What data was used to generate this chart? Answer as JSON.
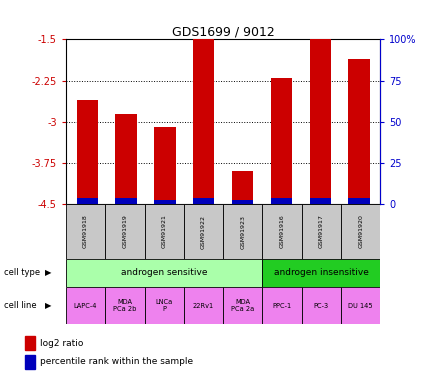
{
  "title": "GDS1699 / 9012",
  "samples": [
    "GSM91918",
    "GSM91919",
    "GSM91921",
    "GSM91922",
    "GSM91923",
    "GSM91916",
    "GSM91917",
    "GSM91920"
  ],
  "log2_ratio": [
    -2.6,
    -2.85,
    -3.1,
    -1.5,
    -3.9,
    -2.2,
    -1.5,
    -1.85
  ],
  "percentile_rank_height": [
    0.12,
    0.12,
    0.08,
    0.12,
    0.08,
    0.12,
    0.12,
    0.12
  ],
  "bar_color": "#cc0000",
  "blue_color": "#0000bb",
  "ymin": -4.5,
  "ymax": -1.5,
  "yticks": [
    -1.5,
    -2.25,
    -3.0,
    -3.75,
    -4.5
  ],
  "ytick_labels": [
    "-1.5",
    "-2.25",
    "-3",
    "-3.75",
    "-4.5"
  ],
  "y2ticks_pct": [
    0,
    25,
    50,
    75,
    100
  ],
  "y2tick_labels": [
    "0",
    "25",
    "50",
    "75",
    "100%"
  ],
  "grid_lines": [
    -2.25,
    -3.0,
    -3.75
  ],
  "cell_type_groups": [
    {
      "label": "androgen sensitive",
      "start": 0,
      "end": 5,
      "color": "#aaffaa"
    },
    {
      "label": "androgen insensitive",
      "start": 5,
      "end": 8,
      "color": "#22cc22"
    }
  ],
  "cell_lines": [
    "LAPC-4",
    "MDA\nPCa 2b",
    "LNCa\nP",
    "22Rv1",
    "MDA\nPCa 2a",
    "PPC-1",
    "PC-3",
    "DU 145"
  ],
  "cell_line_color": "#ee82ee",
  "sample_bg_color": "#c8c8c8",
  "ax_label_color_left": "#cc0000",
  "ax_label_color_right": "#0000cc",
  "bar_width": 0.55,
  "legend_labels": [
    "log2 ratio",
    "percentile rank within the sample"
  ],
  "legend_colors": [
    "#cc0000",
    "#0000bb"
  ],
  "left_labels": [
    "cell type",
    "cell line"
  ],
  "figsize": [
    4.25,
    3.75
  ]
}
